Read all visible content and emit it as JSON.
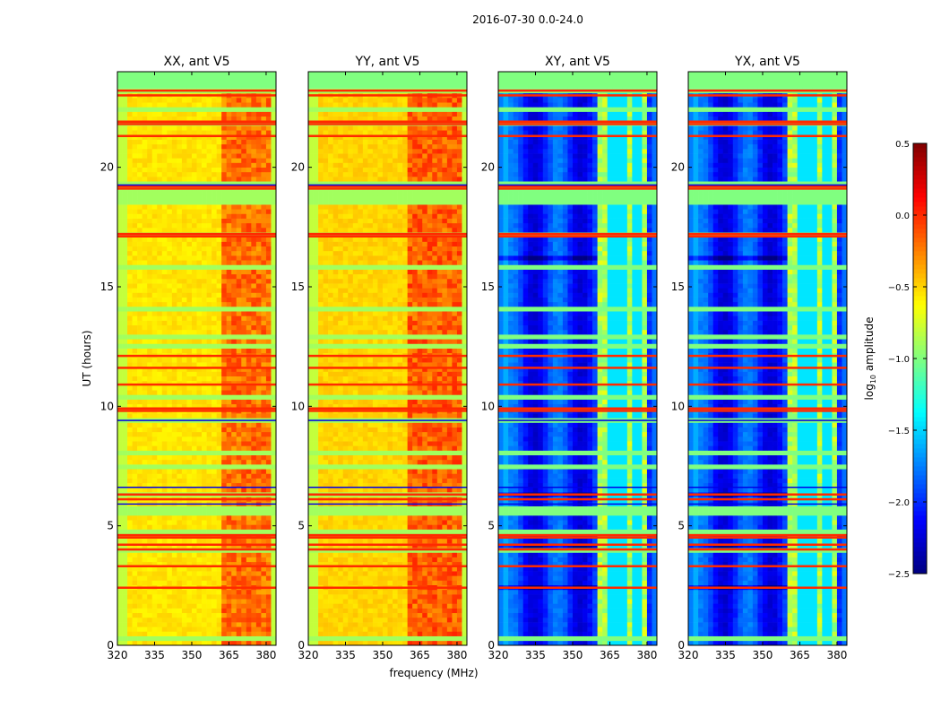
{
  "chart_data": {
    "type": "heatmap",
    "title": "2016-07-30 0.0-24.0",
    "xlabel": "frequency (MHz)",
    "ylabel": "UT (hours)",
    "xlim": [
      320,
      384
    ],
    "ylim": [
      0,
      24
    ],
    "xticks": [
      "320",
      "335",
      "350",
      "365",
      "380"
    ],
    "yticks": [
      "0",
      "5",
      "10",
      "15",
      "20"
    ],
    "xtick_values": [
      320,
      335,
      350,
      365,
      380
    ],
    "ytick_values": [
      0,
      5,
      10,
      15,
      20
    ],
    "masked_range_hours": [
      23.3,
      24
    ],
    "masked_value": -1.0,
    "panels": [
      {
        "title": "XX, ant V5",
        "base": -0.55,
        "edge": -0.8,
        "band_mhz": [
          362,
          382
        ],
        "band_value": -0.2
      },
      {
        "title": "YY, ant V5",
        "base": -0.5,
        "edge": -0.8,
        "band_mhz": [
          361,
          381
        ],
        "band_value": -0.15
      },
      {
        "title": "XY, ant V5",
        "base": -2.0,
        "edge": -1.8,
        "band_mhz": [
          361,
          380
        ],
        "band_value": -0.85
      },
      {
        "title": "YX, ant V5",
        "base": -2.0,
        "edge": -1.8,
        "band_mhz": [
          361,
          380
        ],
        "band_value": -0.85
      }
    ],
    "rfi_rows_hours": [
      23.2,
      23.0,
      21.9,
      21.8,
      21.3,
      19.2,
      19.1,
      17.2,
      17.1,
      12.1,
      11.6,
      10.9,
      9.9,
      9.8,
      6.3,
      6.1,
      4.6,
      4.5,
      4.2,
      4.0,
      3.3,
      2.4
    ],
    "low_rows_hours": [
      6.6,
      5.9,
      9.4,
      19.25
    ],
    "colorbar": {
      "label": "log10 amplitude",
      "label_base": "log",
      "label_sub": "10",
      "label_rest": " amplitude",
      "range": [
        -2.5,
        0.5
      ],
      "ticks": [
        "0.5",
        "0.0",
        "−0.5",
        "−1.0",
        "−1.5",
        "−2.0",
        "−2.5"
      ],
      "tick_values": [
        0.5,
        0.0,
        -0.5,
        -1.0,
        -1.5,
        -2.0,
        -2.5
      ],
      "colormap": "jet"
    }
  }
}
